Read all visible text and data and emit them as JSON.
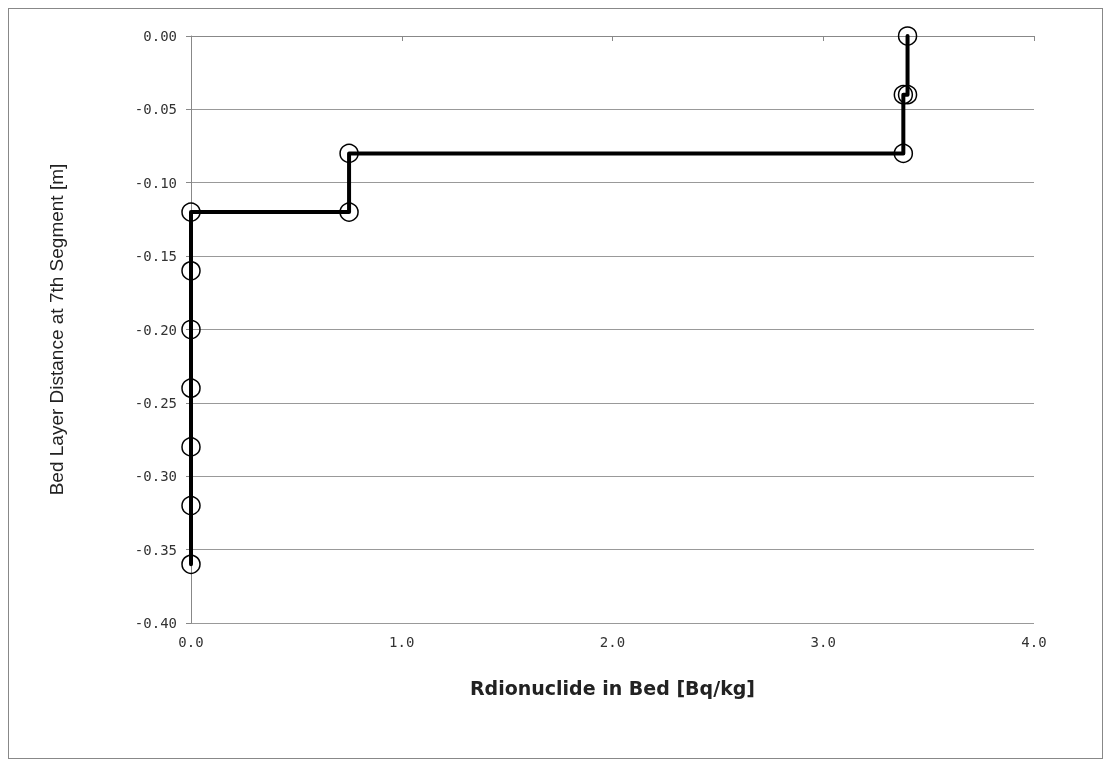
{
  "chart_data": {
    "type": "line",
    "xlabel": "Rdionuclide in Bed [Bq/kg]",
    "ylabel": "Bed Layer Distance at 7th Segment [m]",
    "series": [
      {
        "color": "#000000",
        "x": [
          3.4,
          3.4,
          3.38,
          3.38,
          0.75,
          0.75,
          0,
          0,
          0,
          0,
          0,
          0,
          0
        ],
        "values": [
          0,
          -0.04,
          -0.04,
          -0.08,
          -0.08,
          -0.12,
          -0.12,
          -0.16,
          -0.2,
          -0.24,
          -0.28,
          -0.32,
          -0.36
        ]
      }
    ],
    "xlim": [
      0,
      4
    ],
    "xticks": [
      {
        "value": 0,
        "label": "0.0"
      },
      {
        "value": 1,
        "label": "1.0"
      },
      {
        "value": 2,
        "label": "2.0"
      },
      {
        "value": 3,
        "label": "3.0"
      },
      {
        "value": 4,
        "label": "4.0"
      }
    ],
    "ylim": [
      -0.4,
      0
    ],
    "yticks": [
      {
        "value": -0.4,
        "label": "-0.40"
      },
      {
        "value": -0.35,
        "label": "-0.35"
      },
      {
        "value": -0.3,
        "label": "-0.30"
      },
      {
        "value": -0.25,
        "label": "-0.25"
      },
      {
        "value": -0.2,
        "label": "-0.20"
      },
      {
        "value": -0.15,
        "label": "-0.15"
      },
      {
        "value": -0.1,
        "label": "-0.10"
      },
      {
        "value": -0.05,
        "label": "-0.05"
      },
      {
        "value": 0,
        "label": "0.00"
      }
    ],
    "grid": "y",
    "marker": "circle",
    "line_style": "solid"
  }
}
